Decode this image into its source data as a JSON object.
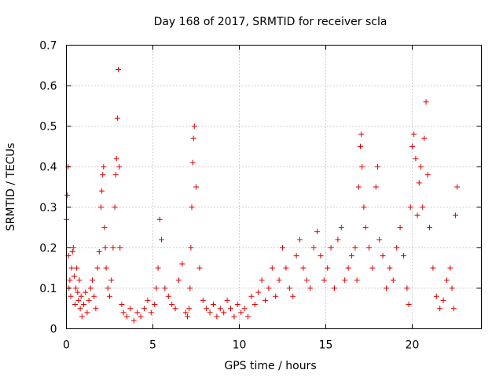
{
  "chart_data": {
    "type": "scatter",
    "title": "Day 168 of 2017, SRMTID for receiver scla",
    "xlabel": "GPS time / hours",
    "ylabel": "SRMTID / TECUs",
    "xlim": [
      0,
      24
    ],
    "ylim": [
      0,
      0.7
    ],
    "xticks": [
      0,
      5,
      10,
      15,
      20
    ],
    "yticks": [
      0,
      0.1,
      0.2,
      0.3,
      0.4,
      0.5,
      0.6,
      0.7
    ],
    "xtick_labels": [
      "0",
      "5",
      "10",
      "15",
      "20"
    ],
    "ytick_labels": [
      "0",
      "0.1",
      "0.2",
      "0.3",
      "0.4",
      "0.5",
      "0.6",
      "0.7"
    ],
    "grid": true,
    "marker": "+",
    "color": "#e00000",
    "series": [
      {
        "name": "SRMTID",
        "x": [
          0.0,
          0.05,
          0.1,
          0.12,
          0.15,
          0.2,
          0.25,
          0.3,
          0.35,
          0.4,
          0.45,
          0.5,
          0.55,
          0.6,
          0.65,
          0.7,
          0.75,
          0.8,
          0.85,
          0.9,
          1.0,
          1.1,
          1.2,
          1.3,
          1.4,
          1.5,
          1.6,
          1.7,
          1.8,
          1.9,
          2.0,
          2.05,
          2.1,
          2.15,
          2.2,
          2.25,
          2.3,
          2.4,
          2.5,
          2.6,
          2.7,
          2.8,
          2.85,
          2.9,
          2.95,
          3.0,
          3.05,
          3.1,
          3.2,
          3.3,
          3.5,
          3.7,
          3.9,
          4.1,
          4.3,
          4.5,
          4.7,
          4.9,
          5.1,
          5.2,
          5.3,
          5.4,
          5.5,
          5.7,
          5.9,
          6.1,
          6.3,
          6.5,
          6.7,
          6.9,
          7.0,
          7.1,
          7.15,
          7.2,
          7.25,
          7.3,
          7.35,
          7.4,
          7.5,
          7.7,
          7.9,
          8.1,
          8.3,
          8.5,
          8.7,
          8.9,
          9.1,
          9.3,
          9.5,
          9.7,
          9.9,
          10.1,
          10.3,
          10.5,
          10.7,
          10.9,
          11.1,
          11.3,
          11.5,
          11.7,
          11.9,
          12.1,
          12.3,
          12.5,
          12.7,
          12.9,
          13.1,
          13.3,
          13.5,
          13.7,
          13.9,
          14.1,
          14.3,
          14.5,
          14.7,
          14.9,
          15.1,
          15.3,
          15.5,
          15.7,
          15.9,
          16.1,
          16.3,
          16.5,
          16.7,
          16.8,
          16.9,
          17.0,
          17.05,
          17.1,
          17.2,
          17.3,
          17.5,
          17.7,
          17.9,
          18.0,
          18.1,
          18.3,
          18.5,
          18.7,
          18.9,
          19.1,
          19.3,
          19.5,
          19.7,
          19.8,
          19.9,
          20.0,
          20.1,
          20.2,
          20.3,
          20.4,
          20.5,
          20.6,
          20.7,
          20.8,
          20.9,
          21.0,
          21.2,
          21.4,
          21.6,
          21.8,
          22.0,
          22.2,
          22.3,
          22.4,
          22.5,
          22.6
        ],
        "y": [
          0.27,
          0.33,
          0.4,
          0.18,
          0.1,
          0.12,
          0.08,
          0.15,
          0.19,
          0.2,
          0.13,
          0.06,
          0.1,
          0.15,
          0.09,
          0.07,
          0.12,
          0.05,
          0.08,
          0.03,
          0.06,
          0.09,
          0.04,
          0.07,
          0.1,
          0.12,
          0.08,
          0.05,
          0.15,
          0.19,
          0.3,
          0.34,
          0.38,
          0.4,
          0.25,
          0.2,
          0.15,
          0.1,
          0.08,
          0.12,
          0.2,
          0.3,
          0.38,
          0.42,
          0.52,
          0.64,
          0.4,
          0.2,
          0.06,
          0.04,
          0.03,
          0.05,
          0.02,
          0.04,
          0.03,
          0.05,
          0.07,
          0.04,
          0.06,
          0.1,
          0.15,
          0.27,
          0.22,
          0.1,
          0.08,
          0.06,
          0.05,
          0.12,
          0.16,
          0.04,
          0.03,
          0.05,
          0.1,
          0.2,
          0.3,
          0.41,
          0.47,
          0.5,
          0.35,
          0.15,
          0.07,
          0.05,
          0.04,
          0.06,
          0.03,
          0.05,
          0.04,
          0.07,
          0.05,
          0.03,
          0.06,
          0.04,
          0.05,
          0.03,
          0.08,
          0.06,
          0.09,
          0.12,
          0.07,
          0.1,
          0.15,
          0.08,
          0.12,
          0.2,
          0.15,
          0.1,
          0.08,
          0.18,
          0.22,
          0.15,
          0.12,
          0.1,
          0.2,
          0.24,
          0.18,
          0.12,
          0.15,
          0.2,
          0.1,
          0.22,
          0.25,
          0.12,
          0.15,
          0.18,
          0.2,
          0.12,
          0.35,
          0.45,
          0.48,
          0.4,
          0.3,
          0.25,
          0.2,
          0.15,
          0.35,
          0.4,
          0.22,
          0.18,
          0.1,
          0.15,
          0.12,
          0.2,
          0.25,
          0.18,
          0.1,
          0.06,
          0.3,
          0.45,
          0.48,
          0.42,
          0.28,
          0.36,
          0.4,
          0.3,
          0.47,
          0.56,
          0.38,
          0.25,
          0.15,
          0.08,
          0.05,
          0.07,
          0.12,
          0.15,
          0.1,
          0.05,
          0.28,
          0.35
        ]
      }
    ]
  }
}
